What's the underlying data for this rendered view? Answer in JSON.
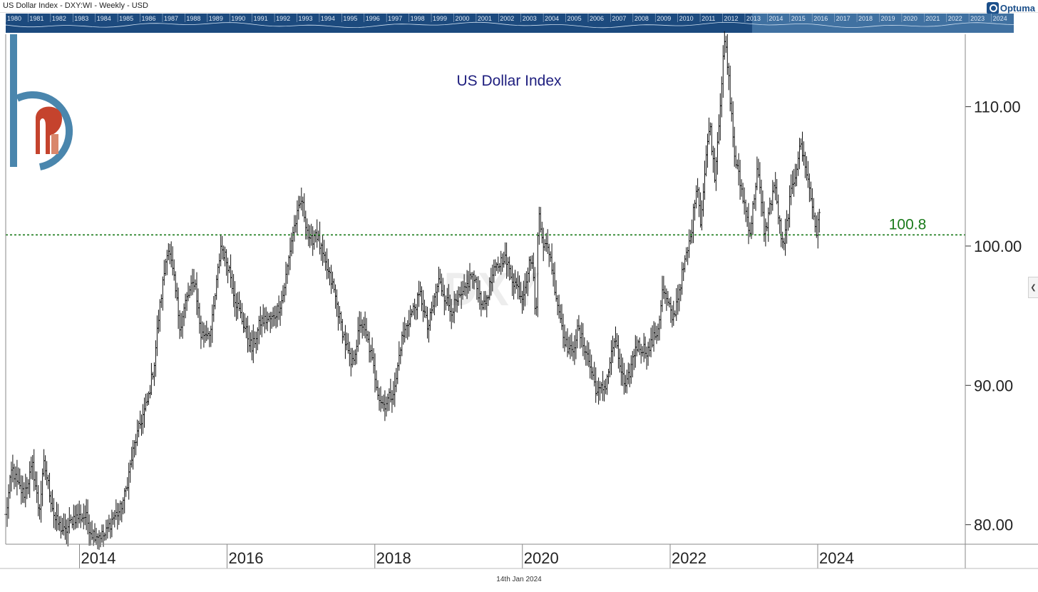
{
  "header": {
    "chart_title": "US Dollar Index - DXY:WI - Weekly - USD",
    "app_name": "Optuma",
    "footer_date": "14th Jan 2024",
    "watermark": "DXY"
  },
  "overview": {
    "years": [
      "1980",
      "1981",
      "1982",
      "1983",
      "1984",
      "1985",
      "1986",
      "1987",
      "1988",
      "1989",
      "1990",
      "1991",
      "1992",
      "1993",
      "1994",
      "1995",
      "1996",
      "1997",
      "1998",
      "1999",
      "2000",
      "2001",
      "2002",
      "2003",
      "2004",
      "2005",
      "2006",
      "2007",
      "2008",
      "2009",
      "2010",
      "2011",
      "2012",
      "2013",
      "2014",
      "2015",
      "2016",
      "2017",
      "2018",
      "2019",
      "2020",
      "2021",
      "2022",
      "2023",
      "2024"
    ],
    "selected_from": "2013",
    "colors": {
      "strip": "#1c4a7e",
      "selected": "#4c7fae",
      "text": "#dfe9f5"
    }
  },
  "chart_data": {
    "type": "ohlc",
    "title": "US Dollar Index",
    "frequency": "weekly",
    "x_range": [
      "2013-01-01",
      "2025-12-31"
    ],
    "ylim": [
      78.6,
      115.2
    ],
    "y_ticks": [
      "80.00",
      "90.00",
      "100.00",
      "110.00"
    ],
    "y_tick_values": [
      80,
      90,
      100,
      110
    ],
    "x_tick_labels": [
      "2014",
      "2016",
      "2018",
      "2020",
      "2022",
      "2024"
    ],
    "x_tick_dates": [
      "2014-01-01",
      "2016-01-01",
      "2018-01-01",
      "2020-01-01",
      "2022-01-01",
      "2024-01-01"
    ],
    "series": [
      {
        "values": [
          [
            "2013-01-01",
            80.6
          ],
          [
            "2013-02-01",
            84.1
          ],
          [
            "2013-03-01",
            82.8
          ],
          [
            "2013-04-01",
            82.2
          ],
          [
            "2013-05-15",
            84.2
          ],
          [
            "2013-06-15",
            80.9
          ],
          [
            "2013-07-10",
            84.4
          ],
          [
            "2013-09-01",
            80.4
          ],
          [
            "2013-10-20",
            79.4
          ],
          [
            "2013-12-01",
            80.5
          ],
          [
            "2014-02-01",
            80.6
          ],
          [
            "2014-03-01",
            79.4
          ],
          [
            "2014-05-05",
            79.2
          ],
          [
            "2014-06-15",
            80.5
          ],
          [
            "2014-07-20",
            81.0
          ],
          [
            "2014-08-15",
            82.2
          ],
          [
            "2014-09-10",
            84.3
          ],
          [
            "2014-10-01",
            85.8
          ],
          [
            "2014-11-01",
            87.4
          ],
          [
            "2014-12-05",
            88.9
          ],
          [
            "2015-01-05",
            91.5
          ],
          [
            "2015-01-25",
            94.6
          ],
          [
            "2015-03-13",
            100.1
          ],
          [
            "2015-04-10",
            97.9
          ],
          [
            "2015-05-15",
            94.1
          ],
          [
            "2015-06-10",
            96.0
          ],
          [
            "2015-07-25",
            97.6
          ],
          [
            "2015-08-25",
            93.6
          ],
          [
            "2015-10-15",
            94.0
          ],
          [
            "2015-12-01",
            100.0
          ],
          [
            "2016-01-10",
            98.5
          ],
          [
            "2016-02-10",
            96.2
          ],
          [
            "2016-05-03",
            92.6
          ],
          [
            "2016-06-15",
            94.6
          ],
          [
            "2016-08-15",
            94.8
          ],
          [
            "2016-10-01",
            96.2
          ],
          [
            "2016-11-20",
            100.9
          ],
          [
            "2017-01-03",
            103.3
          ],
          [
            "2017-02-15",
            100.1
          ],
          [
            "2017-03-15",
            101.1
          ],
          [
            "2017-04-25",
            98.9
          ],
          [
            "2017-06-10",
            97.0
          ],
          [
            "2017-07-15",
            94.5
          ],
          [
            "2017-09-08",
            91.3
          ],
          [
            "2017-10-25",
            94.6
          ],
          [
            "2017-12-01",
            93.0
          ],
          [
            "2018-01-25",
            89.0
          ],
          [
            "2018-02-15",
            88.6
          ],
          [
            "2018-04-10",
            89.7
          ],
          [
            "2018-05-10",
            93.1
          ],
          [
            "2018-06-25",
            95.0
          ],
          [
            "2018-08-15",
            96.5
          ],
          [
            "2018-09-20",
            94.0
          ],
          [
            "2018-11-12",
            97.5
          ],
          [
            "2019-01-10",
            95.4
          ],
          [
            "2019-03-15",
            96.5
          ],
          [
            "2019-04-25",
            98.0
          ],
          [
            "2019-06-25",
            95.6
          ],
          [
            "2019-08-10",
            98.0
          ],
          [
            "2019-10-01",
            99.3
          ],
          [
            "2019-11-15",
            97.6
          ],
          [
            "2019-12-31",
            96.4
          ],
          [
            "2020-02-15",
            99.4
          ],
          [
            "2020-03-09",
            94.7
          ],
          [
            "2020-03-20",
            102.8
          ],
          [
            "2020-04-15",
            100.1
          ],
          [
            "2020-05-15",
            99.6
          ],
          [
            "2020-06-15",
            96.5
          ],
          [
            "2020-08-01",
            93.0
          ],
          [
            "2020-09-01",
            92.3
          ],
          [
            "2020-10-01",
            94.0
          ],
          [
            "2020-11-10",
            92.5
          ],
          [
            "2021-01-06",
            89.4
          ],
          [
            "2021-02-15",
            90.0
          ],
          [
            "2021-03-31",
            93.3
          ],
          [
            "2021-05-25",
            89.6
          ],
          [
            "2021-07-15",
            92.9
          ],
          [
            "2021-09-15",
            92.5
          ],
          [
            "2021-11-01",
            94.0
          ],
          [
            "2021-11-25",
            96.9
          ],
          [
            "2022-01-15",
            94.7
          ],
          [
            "2022-03-01",
            97.9
          ],
          [
            "2022-04-15",
            100.8
          ],
          [
            "2022-05-13",
            104.8
          ],
          [
            "2022-06-01",
            101.7
          ],
          [
            "2022-07-14",
            109.0
          ],
          [
            "2022-08-10",
            105.0
          ],
          [
            "2022-09-28",
            114.8
          ],
          [
            "2022-10-20",
            111.6
          ],
          [
            "2022-11-15",
            106.5
          ],
          [
            "2023-01-10",
            102.5
          ],
          [
            "2023-02-01",
            101.0
          ],
          [
            "2023-03-08",
            105.6
          ],
          [
            "2023-04-14",
            100.8
          ],
          [
            "2023-05-31",
            104.5
          ],
          [
            "2023-07-14",
            99.6
          ],
          [
            "2023-08-15",
            103.2
          ],
          [
            "2023-09-15",
            105.4
          ],
          [
            "2023-10-03",
            107.3
          ],
          [
            "2023-10-30",
            106.0
          ],
          [
            "2023-12-01",
            103.2
          ],
          [
            "2023-12-27",
            100.9
          ],
          [
            "2024-01-12",
            102.5
          ]
        ]
      }
    ],
    "annotations": [
      {
        "type": "hline",
        "value": 100.8,
        "label": "100.8",
        "color": "#1a7a1a",
        "style": "dotted"
      }
    ],
    "colors": {
      "bars": "#111111",
      "title": "#1e1e7e",
      "axis_text": "#222222"
    },
    "grid": false
  }
}
